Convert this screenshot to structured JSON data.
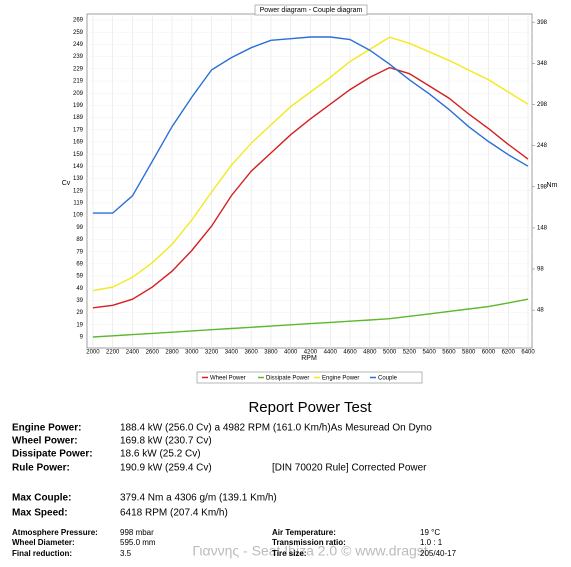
{
  "chart_data": {
    "type": "line",
    "title": "Power diagram - Couple diagram",
    "x_label": "RPM",
    "y_label": "Cv",
    "y2_label": "Nm",
    "x": [
      2000,
      2200,
      2400,
      2600,
      2800,
      3000,
      3200,
      3400,
      3600,
      3800,
      4000,
      4200,
      4400,
      4600,
      4800,
      5000,
      5200,
      5400,
      5600,
      5800,
      6000,
      6200,
      6400
    ],
    "series": [
      {
        "name": "Wheel Power",
        "color": "#d42020",
        "values": [
          33,
          35,
          40,
          50,
          63,
          80,
          100,
          125,
          145,
          160,
          175,
          188,
          200,
          212,
          222,
          230,
          225,
          215,
          205,
          192,
          180,
          167,
          155
        ]
      },
      {
        "name": "Dissipate Power",
        "color": "#5cb82e",
        "values": [
          9,
          10,
          11,
          12,
          13,
          14,
          15,
          16,
          17,
          18,
          19,
          20,
          21,
          22,
          23,
          24,
          26,
          28,
          30,
          32,
          34,
          37,
          40
        ]
      },
      {
        "name": "Engine Power",
        "color": "#f2ea1c",
        "values": [
          47,
          50,
          58,
          70,
          85,
          105,
          128,
          150,
          168,
          183,
          198,
          210,
          222,
          235,
          245,
          255,
          250,
          243,
          236,
          228,
          220,
          210,
          200
        ]
      },
      {
        "name": "Couple",
        "color": "#2a6fd6",
        "axis": "y2",
        "values": [
          166,
          166,
          187,
          229,
          271,
          307,
          340,
          355,
          367,
          376,
          378,
          380,
          380,
          377,
          364,
          347,
          328,
          311,
          292,
          271,
          253,
          237,
          223
        ]
      }
    ],
    "xlim": [
      1940,
      6440
    ],
    "xticks": [
      2000,
      2200,
      2400,
      2600,
      2800,
      3000,
      3200,
      3400,
      3600,
      3800,
      4000,
      4200,
      4400,
      4600,
      4800,
      5000,
      5200,
      5400,
      5600,
      5800,
      6000,
      6200,
      6400
    ],
    "ylim": [
      0,
      274
    ],
    "yticks": [
      9,
      19,
      29,
      39,
      49,
      59,
      69,
      79,
      89,
      99,
      109,
      119,
      129,
      139,
      149,
      159,
      169,
      179,
      189,
      199,
      209,
      219,
      229,
      239,
      249,
      259,
      269
    ],
    "y2lim": [
      2,
      408
    ],
    "y2ticks": [
      48,
      98,
      148,
      198,
      248,
      298,
      348,
      398
    ],
    "grid": true,
    "legend": "bottom"
  },
  "report": {
    "title": "Report Power Test",
    "rows": [
      [
        "Engine Power:",
        "188.4 kW (256.0 Cv) a 4982 RPM (161.0 Km/h)As Mesuread On Dyno"
      ],
      [
        "Wheel Power:",
        "169.8 kW (230.7 Cv)"
      ],
      [
        "Dissipate Power:",
        "18.6 kW (25.2 Cv)"
      ],
      [
        "Rule Power:",
        "190.9 kW (259.4 Cv)",
        "[DIN 70020 Rule] Corrected Power"
      ],
      [
        "Max Couple:",
        "379.4 Nm a 4306 g/m (139.1 Km/h)"
      ],
      [
        "Max Speed:",
        "6418 RPM (207.4 Km/h)"
      ]
    ],
    "conditions": [
      [
        "Atmosphere Pressure:",
        "998 mbar",
        "Air Temperature:",
        "19 °C"
      ],
      [
        "Wheel Diameter:",
        "595.0 mm",
        "Transmission ratio:",
        "1.0 : 1"
      ],
      [
        "Final reduction:",
        "3.5",
        "Tire size:",
        "205/40-17"
      ]
    ],
    "watermark": "Γιαννης - Seat Ibiza 2.0 © www.dragst"
  }
}
